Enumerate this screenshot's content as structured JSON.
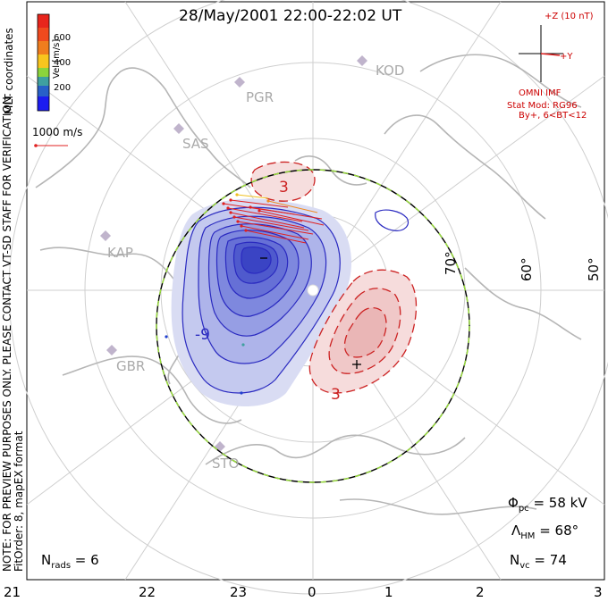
{
  "title": "28/May/2001 22:00-22:02 UT",
  "side_text": {
    "line1": "NOTE: FOR PREVIEW PURPOSES ONLY. PLEASE CONTACT VT-SD STAFF FOR VERIFICATION.",
    "line2": "FitOrder: 8, mapEX format",
    "coords": "MLT coordinates"
  },
  "velocity_legend": {
    "label": "Vel [m/s]",
    "ticks": [
      "600",
      "400",
      "200"
    ],
    "colors": [
      "#e8251c",
      "#f07d1e",
      "#f8c51e",
      "#8cd43c",
      "#3fa0a0",
      "#2860c8",
      "#1c1cf0"
    ],
    "reference_vector": "1000 m/s"
  },
  "imf": {
    "z_label": "+Z (10 nT)",
    "y_label": "+Y",
    "source": "OMNI IMF",
    "model": "Stat Mod: RG96",
    "condition": "By+, 6<BT<12"
  },
  "radars": [
    "KOD",
    "PGR",
    "SAS",
    "KAP",
    "GBR",
    "STO"
  ],
  "latitude_labels": [
    "70°",
    "60°",
    "50°"
  ],
  "contour_labels": {
    "neg": "-9",
    "pos_top": "3",
    "pos_bottom": "3"
  },
  "stats": {
    "phi_pc": "58 kV",
    "lambda_hm": "68°",
    "n_vc": "74",
    "n_rads": "6"
  },
  "mlt_ticks": [
    "21",
    "22",
    "23",
    "0",
    "1",
    "2",
    "3"
  ]
}
